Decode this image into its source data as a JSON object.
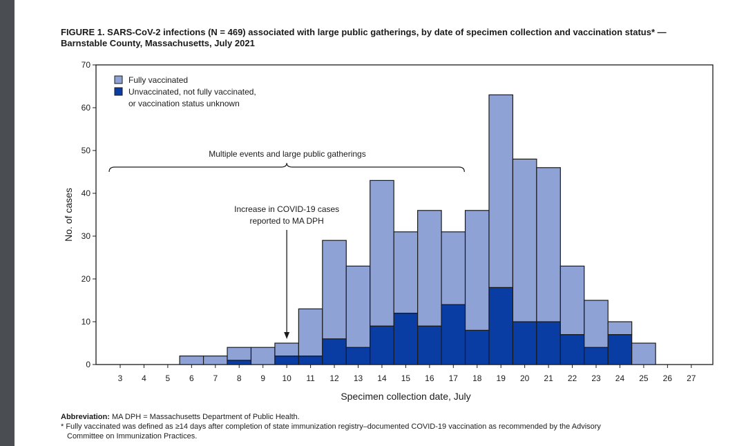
{
  "figure": {
    "title_line1": "FIGURE 1. SARS-CoV-2 infections (N = 469) associated with large public gatherings, by date of specimen collection and vaccination status* —",
    "title_line2": "Barnstable County, Massachusetts, July 2021"
  },
  "footnotes": {
    "abbrev_label": "Abbreviation:",
    "abbrev_text": " MA DPH = Massachusetts Department of Public Health.",
    "note_line1": "* Fully vaccinated was defined as ≥14 days after completion of state immunization registry–documented COVID-19 vaccination as recommended by the Advisory",
    "note_line2": "Committee on Immunization Practices."
  },
  "colors": {
    "fully_vaccinated": "#8ea2d6",
    "unvaccinated": "#0a3da3",
    "outline": "#1a1a1a",
    "left_bar": "#4a4d52"
  },
  "chart_data": {
    "type": "bar",
    "stacked": true,
    "title": "",
    "xlabel": "Specimen collection date, July",
    "ylabel": "No. of cases",
    "ylim": [
      0,
      70
    ],
    "yticks": [
      0,
      10,
      20,
      30,
      40,
      50,
      60,
      70
    ],
    "categories": [
      "3",
      "4",
      "5",
      "6",
      "7",
      "8",
      "9",
      "10",
      "11",
      "12",
      "13",
      "14",
      "15",
      "16",
      "17",
      "18",
      "19",
      "20",
      "21",
      "22",
      "23",
      "24",
      "25",
      "26",
      "27"
    ],
    "series": [
      {
        "name": "Unvaccinated, not fully vaccinated, or vaccination status unknown",
        "legend_lines": [
          "Unvaccinated, not fully vaccinated,",
          "or vaccination status unknown"
        ],
        "color": "#0a3da3",
        "values": [
          0,
          0,
          0,
          0,
          0,
          1,
          0,
          2,
          2,
          6,
          4,
          9,
          12,
          9,
          14,
          8,
          18,
          10,
          10,
          7,
          4,
          7,
          0,
          0,
          0
        ]
      },
      {
        "name": "Fully vaccinated",
        "legend_lines": [
          "Fully vaccinated"
        ],
        "color": "#8ea2d6",
        "values": [
          0,
          0,
          0,
          2,
          2,
          3,
          4,
          3,
          11,
          23,
          19,
          34,
          19,
          27,
          17,
          28,
          45,
          38,
          36,
          16,
          11,
          3,
          5,
          0,
          0
        ]
      }
    ],
    "totals": [
      0,
      0,
      0,
      2,
      2,
      4,
      4,
      5,
      13,
      29,
      23,
      43,
      31,
      36,
      31,
      36,
      63,
      48,
      46,
      23,
      15,
      10,
      5,
      0,
      0
    ],
    "legend_position": "top-left",
    "annotations": [
      {
        "type": "brace",
        "text": "Multiple events and large public gatherings",
        "from": "3",
        "to": "17"
      },
      {
        "type": "arrow",
        "lines": [
          "Increase in COVID-19 cases",
          "reported to MA DPH"
        ],
        "at": "10"
      }
    ],
    "grid": false
  }
}
